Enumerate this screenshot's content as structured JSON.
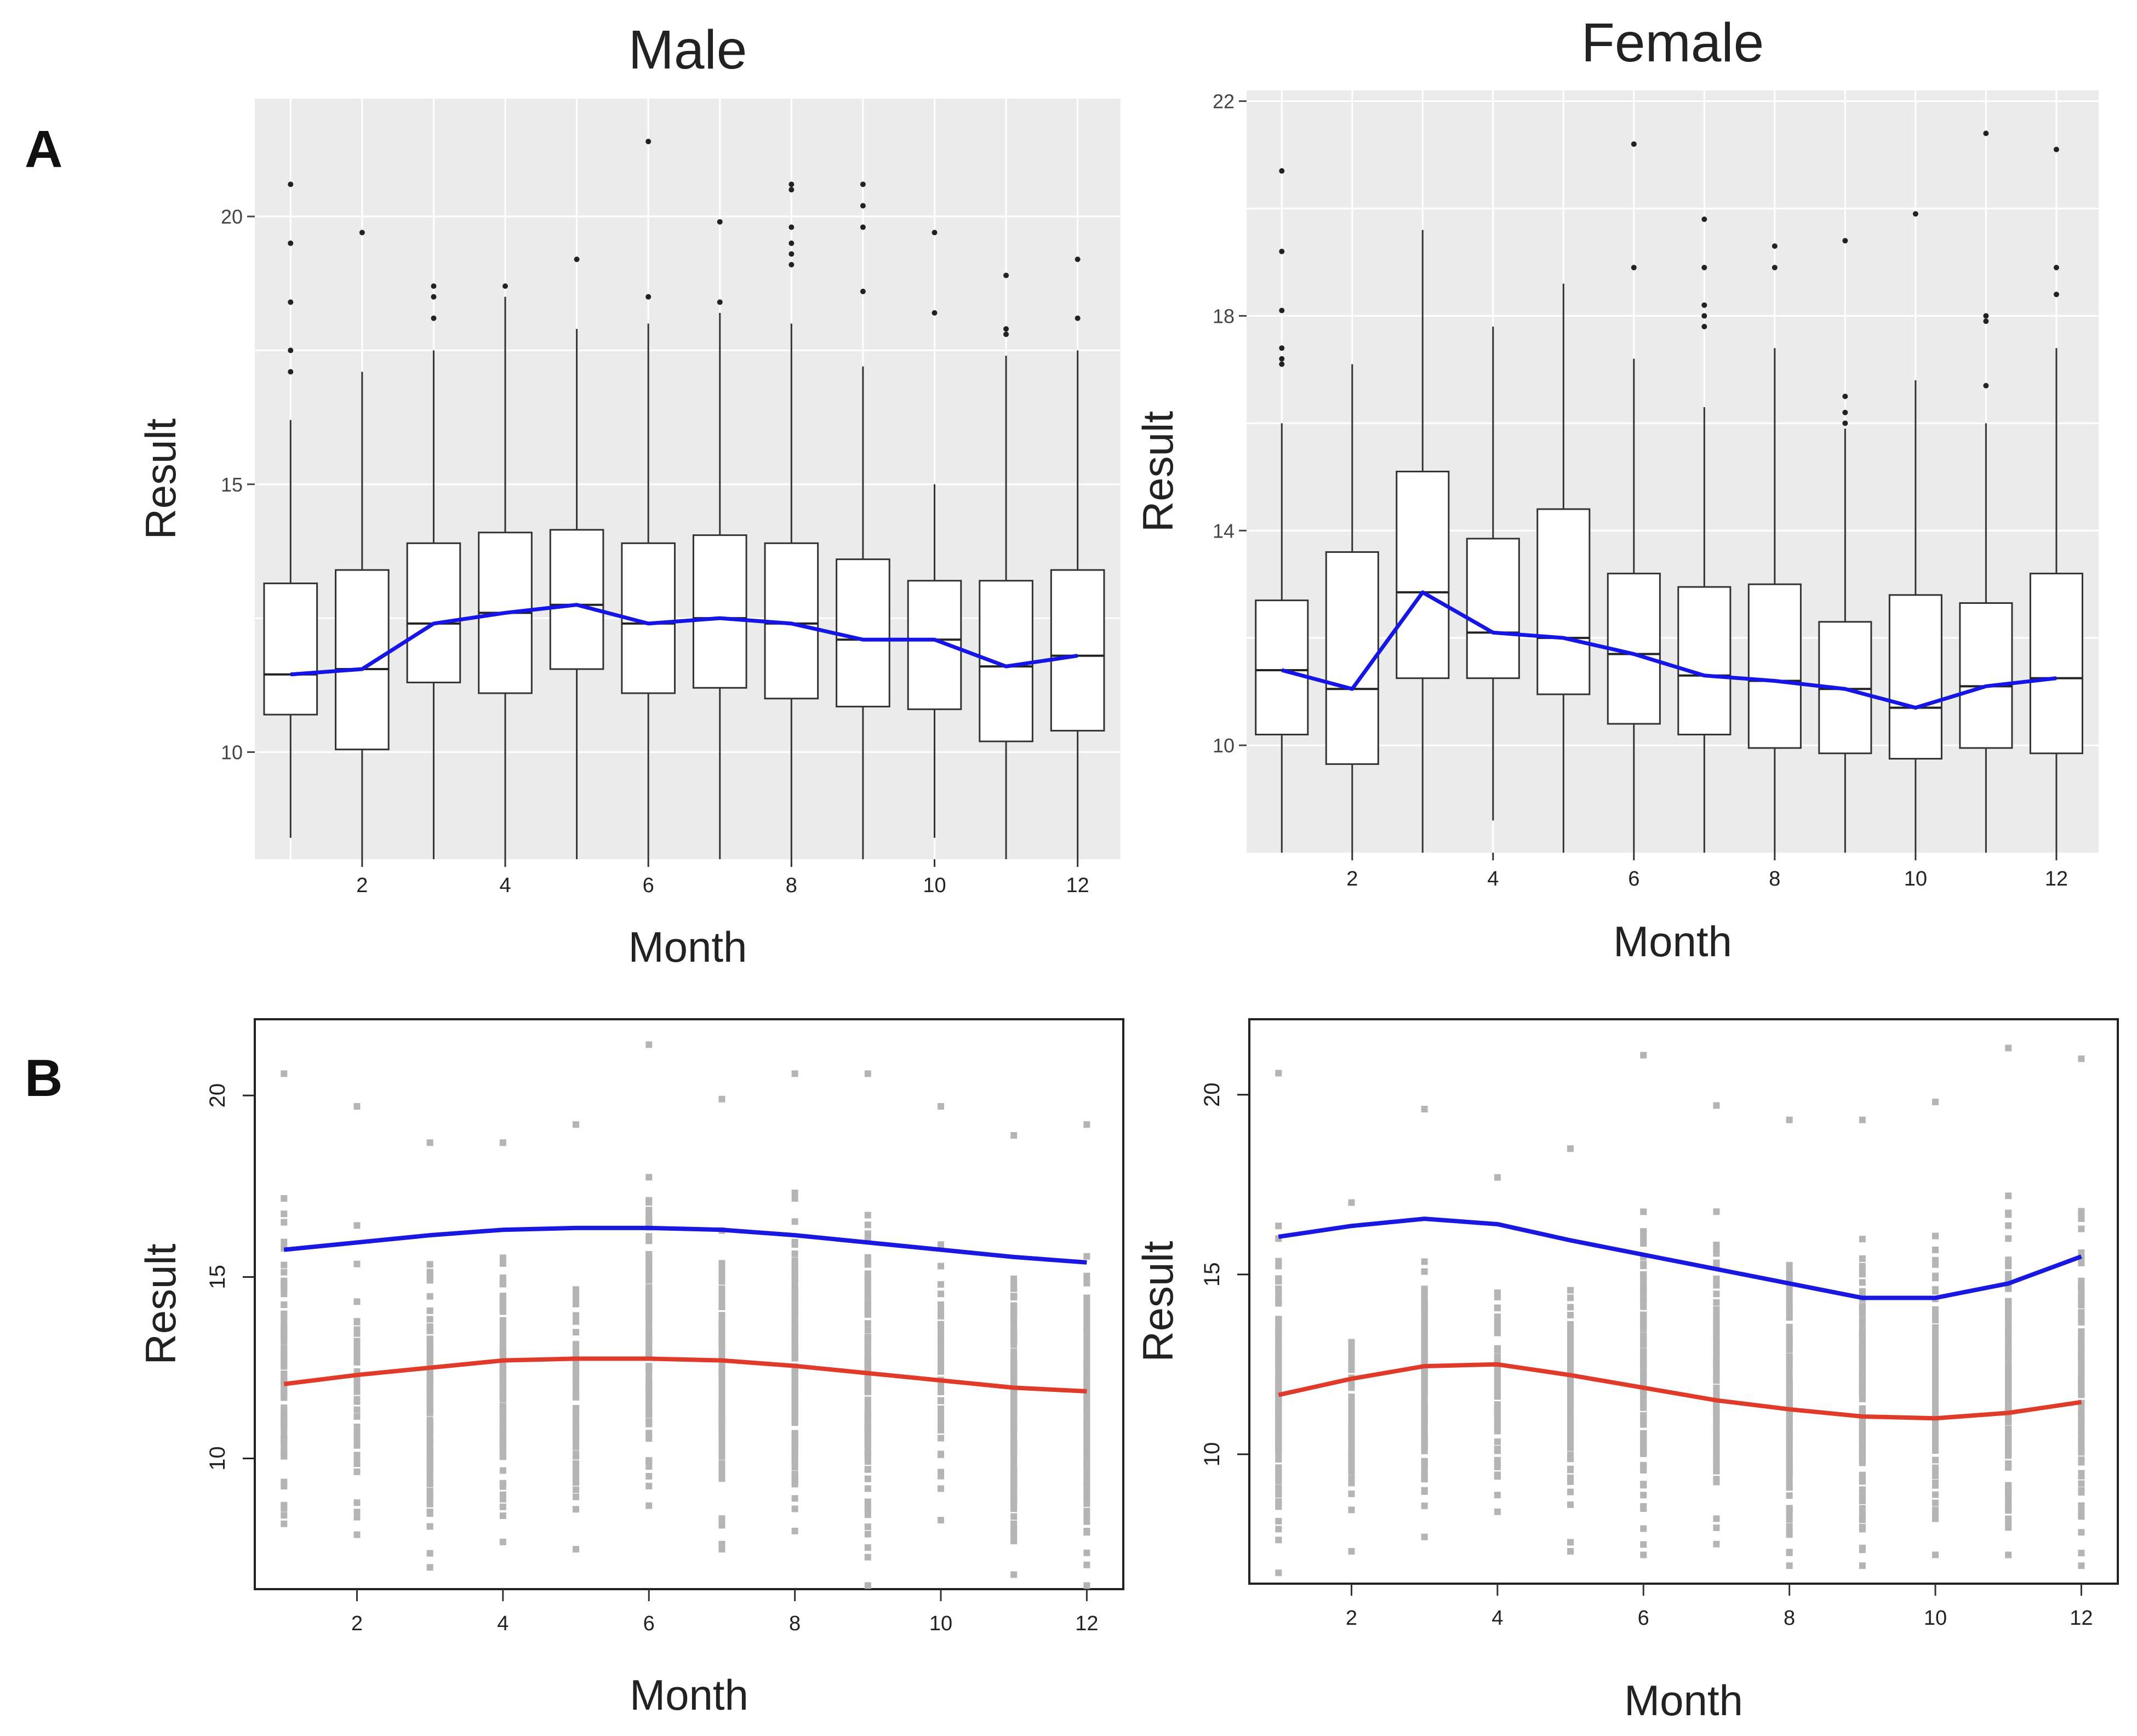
{
  "figure": {
    "panel_labels": {
      "A": "A",
      "B": "B"
    },
    "colors": {
      "ggplot_bg": "#EBEBEB",
      "grid": "#FFFFFF",
      "box_fill": "#FFFFFF",
      "box_stroke": "#333333",
      "median_line": "#1515E6",
      "upper_line": "#1818E0",
      "lower_line": "#E03A2A",
      "scatter_point": "#B4B4B4",
      "text": "#222222"
    }
  },
  "chart_data": [
    {
      "type": "box",
      "panel": "A",
      "title": "Male",
      "xlabel": "Month",
      "ylabel": "Result",
      "xlim": [
        0.5,
        12.6
      ],
      "ylim": [
        8.0,
        22.2
      ],
      "xticks": [
        2,
        4,
        6,
        8,
        10,
        12
      ],
      "yticks": [
        10,
        15,
        20
      ],
      "ygrid": [
        10,
        12.5,
        15,
        17.5,
        20
      ],
      "xgrid": [
        1,
        2,
        3,
        4,
        5,
        6,
        7,
        8,
        9,
        10,
        11,
        12
      ],
      "background": "grey",
      "boxes": [
        {
          "month": 1,
          "whisker_low": 8.4,
          "q1": 10.7,
          "median": 11.45,
          "q3": 13.15,
          "whisker_high": 16.2,
          "outliers": [
            17.1,
            17.5,
            18.4,
            19.5,
            20.6
          ]
        },
        {
          "month": 2,
          "whisker_low": 8.0,
          "q1": 10.05,
          "median": 11.55,
          "q3": 13.4,
          "whisker_high": 17.1,
          "outliers": [
            19.7
          ]
        },
        {
          "month": 3,
          "whisker_low": 8.0,
          "q1": 11.3,
          "median": 12.4,
          "q3": 13.9,
          "whisker_high": 17.5,
          "outliers": [
            18.1,
            18.5,
            18.7
          ]
        },
        {
          "month": 4,
          "whisker_low": 8.0,
          "q1": 11.1,
          "median": 12.6,
          "q3": 14.1,
          "whisker_high": 18.5,
          "outliers": [
            18.7
          ]
        },
        {
          "month": 5,
          "whisker_low": 8.0,
          "q1": 11.55,
          "median": 12.75,
          "q3": 14.15,
          "whisker_high": 17.9,
          "outliers": [
            19.2
          ]
        },
        {
          "month": 6,
          "whisker_low": 8.0,
          "q1": 11.1,
          "median": 12.4,
          "q3": 13.9,
          "whisker_high": 18.0,
          "outliers": [
            18.5,
            21.4
          ]
        },
        {
          "month": 7,
          "whisker_low": 8.0,
          "q1": 11.2,
          "median": 12.5,
          "q3": 14.05,
          "whisker_high": 18.2,
          "outliers": [
            18.4,
            19.9
          ]
        },
        {
          "month": 8,
          "whisker_low": 8.0,
          "q1": 11.0,
          "median": 12.4,
          "q3": 13.9,
          "whisker_high": 18.0,
          "outliers": [
            19.1,
            19.3,
            19.5,
            19.8,
            20.5,
            20.6
          ]
        },
        {
          "month": 9,
          "whisker_low": 8.0,
          "q1": 10.85,
          "median": 12.1,
          "q3": 13.6,
          "whisker_high": 17.2,
          "outliers": [
            18.6,
            19.8,
            20.2,
            20.6
          ]
        },
        {
          "month": 10,
          "whisker_low": 8.4,
          "q1": 10.8,
          "median": 12.1,
          "q3": 13.2,
          "whisker_high": 15.0,
          "outliers": [
            18.2,
            19.7
          ]
        },
        {
          "month": 11,
          "whisker_low": 8.0,
          "q1": 10.2,
          "median": 11.6,
          "q3": 13.2,
          "whisker_high": 17.4,
          "outliers": [
            17.8,
            17.9,
            18.9
          ]
        },
        {
          "month": 12,
          "whisker_low": 8.0,
          "q1": 10.4,
          "median": 11.8,
          "q3": 13.4,
          "whisker_high": 17.5,
          "outliers": [
            18.1,
            19.2
          ]
        }
      ],
      "median_trend": [
        11.45,
        11.55,
        12.4,
        12.6,
        12.75,
        12.4,
        12.5,
        12.4,
        12.1,
        12.1,
        11.6,
        11.8
      ]
    },
    {
      "type": "box",
      "panel": "A",
      "title": "Female",
      "xlabel": "Month",
      "ylabel": "Result",
      "xlim": [
        0.5,
        12.6
      ],
      "ylim": [
        8.0,
        22.2
      ],
      "xticks": [
        2,
        4,
        6,
        8,
        10,
        12
      ],
      "yticks": [
        10,
        14,
        18,
        22
      ],
      "ygrid": [
        10,
        12,
        14,
        16,
        18,
        20,
        22
      ],
      "xgrid": [
        1,
        2,
        3,
        4,
        5,
        6,
        7,
        8,
        9,
        10,
        11,
        12
      ],
      "background": "grey",
      "boxes": [
        {
          "month": 1,
          "whisker_low": 8.0,
          "q1": 10.2,
          "median": 11.4,
          "q3": 12.7,
          "whisker_high": 16.0,
          "outliers": [
            17.1,
            17.2,
            17.4,
            18.1,
            19.2,
            20.7
          ]
        },
        {
          "month": 2,
          "whisker_low": 8.0,
          "q1": 9.65,
          "median": 11.05,
          "q3": 13.6,
          "whisker_high": 17.1,
          "outliers": []
        },
        {
          "month": 3,
          "whisker_low": 8.0,
          "q1": 11.25,
          "median": 12.85,
          "q3": 15.1,
          "whisker_high": 19.6,
          "outliers": []
        },
        {
          "month": 4,
          "whisker_low": 8.6,
          "q1": 11.25,
          "median": 12.1,
          "q3": 13.85,
          "whisker_high": 17.8,
          "outliers": []
        },
        {
          "month": 5,
          "whisker_low": 8.0,
          "q1": 10.95,
          "median": 12.0,
          "q3": 14.4,
          "whisker_high": 18.6,
          "outliers": []
        },
        {
          "month": 6,
          "whisker_low": 8.0,
          "q1": 10.4,
          "median": 11.7,
          "q3": 13.2,
          "whisker_high": 17.2,
          "outliers": [
            18.9,
            21.2
          ]
        },
        {
          "month": 7,
          "whisker_low": 8.0,
          "q1": 10.2,
          "median": 11.3,
          "q3": 12.95,
          "whisker_high": 16.3,
          "outliers": [
            17.8,
            18.0,
            18.2,
            18.9,
            19.8
          ]
        },
        {
          "month": 8,
          "whisker_low": 8.0,
          "q1": 9.95,
          "median": 11.2,
          "q3": 13.0,
          "whisker_high": 17.4,
          "outliers": [
            18.9,
            19.3
          ]
        },
        {
          "month": 9,
          "whisker_low": 8.0,
          "q1": 9.85,
          "median": 11.05,
          "q3": 12.3,
          "whisker_high": 15.9,
          "outliers": [
            16.0,
            16.2,
            16.5,
            19.4
          ]
        },
        {
          "month": 10,
          "whisker_low": 8.0,
          "q1": 9.75,
          "median": 10.7,
          "q3": 12.8,
          "whisker_high": 16.8,
          "outliers": [
            19.9
          ]
        },
        {
          "month": 11,
          "whisker_low": 8.0,
          "q1": 9.95,
          "median": 11.1,
          "q3": 12.65,
          "whisker_high": 16.0,
          "outliers": [
            16.7,
            17.9,
            18.0,
            21.4
          ]
        },
        {
          "month": 12,
          "whisker_low": 8.0,
          "q1": 9.85,
          "median": 11.25,
          "q3": 13.2,
          "whisker_high": 17.4,
          "outliers": [
            18.4,
            18.9,
            21.1
          ]
        }
      ],
      "median_trend": [
        11.4,
        11.05,
        12.85,
        12.1,
        12.0,
        11.7,
        11.3,
        11.2,
        11.05,
        10.7,
        11.1,
        11.25
      ]
    },
    {
      "type": "scatter",
      "panel": "B",
      "title": "",
      "xlabel": "Month",
      "ylabel": "Result",
      "xlim": [
        0.6,
        12.5
      ],
      "ylim": [
        6.4,
        22.1
      ],
      "xticks": [
        2,
        4,
        6,
        8,
        10,
        12
      ],
      "yticks": [
        10,
        15,
        20
      ],
      "background": "white",
      "point_ranges": [
        {
          "month": 1,
          "low": 8.2,
          "high": 20.6,
          "n": 90
        },
        {
          "month": 2,
          "low": 7.9,
          "high": 19.7,
          "n": 45
        },
        {
          "month": 3,
          "low": 7.0,
          "high": 18.7,
          "n": 130
        },
        {
          "month": 4,
          "low": 7.7,
          "high": 18.7,
          "n": 110
        },
        {
          "month": 5,
          "low": 7.5,
          "high": 19.2,
          "n": 70
        },
        {
          "month": 6,
          "low": 8.7,
          "high": 21.4,
          "n": 110
        },
        {
          "month": 7,
          "low": 7.5,
          "high": 19.9,
          "n": 110
        },
        {
          "month": 8,
          "low": 8.0,
          "high": 20.6,
          "n": 170
        },
        {
          "month": 9,
          "low": 6.5,
          "high": 20.6,
          "n": 120
        },
        {
          "month": 10,
          "low": 8.3,
          "high": 19.7,
          "n": 65
        },
        {
          "month": 11,
          "low": 6.8,
          "high": 18.9,
          "n": 150
        },
        {
          "month": 12,
          "low": 6.5,
          "high": 19.2,
          "n": 120
        }
      ],
      "series": [
        {
          "name": "upper",
          "color": "#1818E0",
          "x": [
            1,
            2,
            3,
            4,
            5,
            6,
            7,
            8,
            9,
            10,
            11,
            12
          ],
          "values": [
            15.75,
            15.95,
            16.15,
            16.3,
            16.35,
            16.35,
            16.3,
            16.15,
            15.95,
            15.75,
            15.55,
            15.4
          ]
        },
        {
          "name": "lower",
          "color": "#E03A2A",
          "x": [
            1,
            2,
            3,
            4,
            5,
            6,
            7,
            8,
            9,
            10,
            11,
            12
          ],
          "values": [
            12.05,
            12.3,
            12.5,
            12.7,
            12.75,
            12.75,
            12.7,
            12.55,
            12.35,
            12.15,
            11.95,
            11.85
          ]
        }
      ]
    },
    {
      "type": "scatter",
      "panel": "B",
      "title": "",
      "xlabel": "Month",
      "ylabel": "Result",
      "xlim": [
        0.6,
        12.5
      ],
      "ylim": [
        6.4,
        22.1
      ],
      "xticks": [
        2,
        4,
        6,
        8,
        10,
        12
      ],
      "yticks": [
        10,
        15,
        20
      ],
      "background": "white",
      "point_ranges": [
        {
          "month": 1,
          "low": 6.7,
          "high": 20.6,
          "n": 130
        },
        {
          "month": 2,
          "low": 7.3,
          "high": 17.0,
          "n": 55
        },
        {
          "month": 3,
          "low": 7.7,
          "high": 19.6,
          "n": 130
        },
        {
          "month": 4,
          "low": 8.4,
          "high": 17.7,
          "n": 70
        },
        {
          "month": 5,
          "low": 7.3,
          "high": 18.5,
          "n": 70
        },
        {
          "month": 6,
          "low": 7.2,
          "high": 21.1,
          "n": 120
        },
        {
          "month": 7,
          "low": 7.5,
          "high": 19.7,
          "n": 110
        },
        {
          "month": 8,
          "low": 6.9,
          "high": 19.3,
          "n": 140
        },
        {
          "month": 9,
          "low": 6.9,
          "high": 19.3,
          "n": 150
        },
        {
          "month": 10,
          "low": 7.2,
          "high": 19.8,
          "n": 110
        },
        {
          "month": 11,
          "low": 7.2,
          "high": 21.3,
          "n": 150
        },
        {
          "month": 12,
          "low": 6.9,
          "high": 21.0,
          "n": 130
        }
      ],
      "series": [
        {
          "name": "upper",
          "color": "#1818E0",
          "x": [
            1,
            2,
            3,
            4,
            5,
            6,
            7,
            8,
            9,
            10,
            11,
            12
          ],
          "values": [
            16.05,
            16.35,
            16.55,
            16.4,
            15.95,
            15.55,
            15.15,
            14.75,
            14.35,
            14.35,
            14.75,
            15.5
          ]
        },
        {
          "name": "lower",
          "color": "#E03A2A",
          "x": [
            1,
            2,
            3,
            4,
            5,
            6,
            7,
            8,
            9,
            10,
            11,
            12
          ],
          "values": [
            11.65,
            12.1,
            12.45,
            12.5,
            12.2,
            11.85,
            11.5,
            11.25,
            11.05,
            11.0,
            11.15,
            11.45
          ]
        }
      ]
    }
  ]
}
